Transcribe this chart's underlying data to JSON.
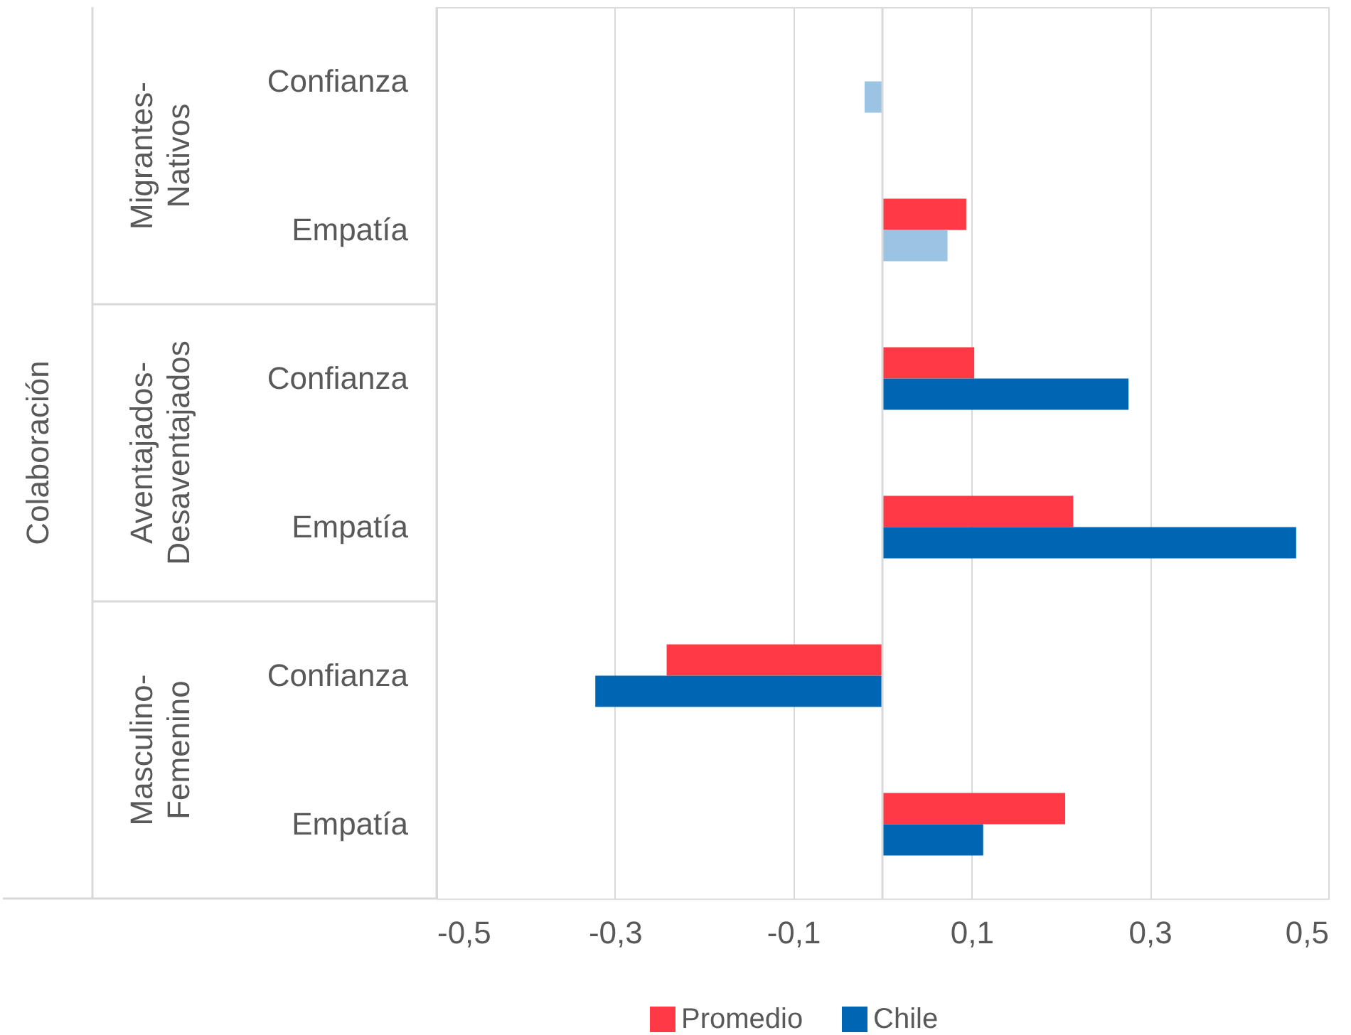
{
  "chart_data": {
    "type": "bar",
    "orientation": "horizontal",
    "categories": [
      "Confianza",
      "Empatía",
      "Confianza",
      "Empatía",
      "Confianza",
      "Empatía"
    ],
    "annotations": [
      "Colaboración",
      "Migrantes-Nativos",
      "Aventajados-Desaventajados",
      "Masculino-Femenino"
    ],
    "series": [
      {
        "name": "Promedio",
        "color": "#ff3a46",
        "values": [
          null,
          0.094,
          0.103,
          0.214,
          -0.242,
          0.205
        ]
      },
      {
        "name": "Chile",
        "color": "#0066b3",
        "colors": [
          "#9bc4e2",
          "#9bc4e2",
          "#0066b3",
          "#0066b3",
          "#0066b3",
          "#0066b3"
        ],
        "values": [
          -0.02,
          0.073,
          0.276,
          0.464,
          -0.322,
          0.113
        ]
      }
    ],
    "xlim": [
      -0.5,
      0.5
    ],
    "xticks": [
      {
        "value": -0.5,
        "label": "-0,5"
      },
      {
        "value": -0.3,
        "label": "-0,3"
      },
      {
        "value": -0.1,
        "label": "-0,1"
      },
      {
        "value": 0.1,
        "label": "0,1"
      },
      {
        "value": 0.3,
        "label": "0,3"
      },
      {
        "value": 0.5,
        "label": "0,5"
      }
    ],
    "ref_lines": [
      {
        "axis": "x",
        "value": 0,
        "color": "#d9d9d9"
      }
    ],
    "grid": "x",
    "legend": "bottom"
  }
}
